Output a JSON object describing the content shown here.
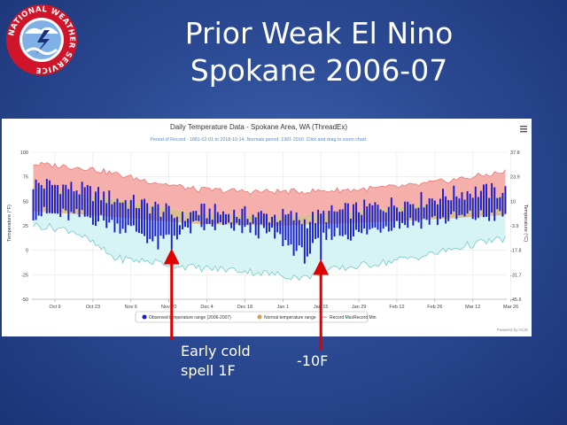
{
  "slide": {
    "title_line1": "Prior Weak El Nino",
    "title_line2": "Spokane 2006-07",
    "annotation_early_line1": "Early cold",
    "annotation_early_line2": "spell 1F",
    "annotation_cold": "-10F"
  },
  "logo": {
    "name": "NATIONAL WEATHER SERVICE",
    "brand_color": "#d0152a"
  },
  "chart_data": {
    "type": "area",
    "title": "Daily Temperature Data - Spokane Area, WA (ThreadEx)",
    "subtitle": "Period of Record - 1881-02-01 to 2018-10-14. Normals period: 1981-2010. Click and drag to zoom chart.",
    "ylabel_left": "Temperature (°F)",
    "ylabel_right": "Temperature (°C)",
    "ylim": [
      -50,
      100
    ],
    "yticks": [
      "100",
      "75",
      "50",
      "25",
      "0",
      "-25",
      "-50"
    ],
    "yticks_right": [
      "37.8",
      "23.9",
      "10",
      "-3.9",
      "-17.8",
      "-31.7",
      "-45.6"
    ],
    "x_labels": [
      "Oct 9",
      "Oct 23",
      "Nov 6",
      "Nov 20",
      "Dec 4",
      "Dec 18",
      "Jan 1",
      "Jan 15",
      "Jan 29",
      "Feb 12",
      "Feb 26",
      "Mar 12",
      "Mar 26"
    ],
    "days": 175,
    "start": "Oct 1",
    "series": [
      {
        "name": "Observed temperature range (2006-2007)",
        "color": "#1a1ad0",
        "keyframes_max": [
          [
            0,
            68
          ],
          [
            10,
            66
          ],
          [
            20,
            60
          ],
          [
            30,
            52
          ],
          [
            45,
            44
          ],
          [
            55,
            32
          ],
          [
            60,
            40
          ],
          [
            70,
            38
          ],
          [
            80,
            36
          ],
          [
            95,
            34
          ],
          [
            100,
            30
          ],
          [
            110,
            38
          ],
          [
            120,
            42
          ],
          [
            130,
            46
          ],
          [
            145,
            52
          ],
          [
            160,
            60
          ],
          [
            174,
            60
          ]
        ],
        "keyframes_min": [
          [
            0,
            38
          ],
          [
            10,
            36
          ],
          [
            20,
            34
          ],
          [
            30,
            26
          ],
          [
            40,
            18
          ],
          [
            46,
            5
          ],
          [
            50,
            14
          ],
          [
            60,
            24
          ],
          [
            70,
            24
          ],
          [
            80,
            22
          ],
          [
            90,
            14
          ],
          [
            100,
            -6
          ],
          [
            105,
            6
          ],
          [
            110,
            18
          ],
          [
            120,
            16
          ],
          [
            130,
            26
          ],
          [
            145,
            30
          ],
          [
            160,
            34
          ],
          [
            174,
            36
          ]
        ],
        "record_low_days": [
          {
            "day": 51,
            "value": 1
          },
          {
            "day": 106,
            "value": -10
          }
        ]
      },
      {
        "name": "Normal temperature range",
        "color": "#c8a060",
        "keyframes_max": [
          [
            0,
            65
          ],
          [
            30,
            52
          ],
          [
            60,
            38
          ],
          [
            90,
            34
          ],
          [
            120,
            40
          ],
          [
            150,
            48
          ],
          [
            174,
            56
          ]
        ],
        "keyframes_min": [
          [
            0,
            40
          ],
          [
            30,
            34
          ],
          [
            60,
            27
          ],
          [
            90,
            25
          ],
          [
            120,
            28
          ],
          [
            150,
            32
          ],
          [
            174,
            36
          ]
        ]
      },
      {
        "name": "Record Max",
        "color": "#e87878",
        "keyframes": [
          [
            0,
            88
          ],
          [
            20,
            84
          ],
          [
            40,
            72
          ],
          [
            60,
            62
          ],
          [
            80,
            60
          ],
          [
            100,
            60
          ],
          [
            120,
            62
          ],
          [
            140,
            66
          ],
          [
            160,
            74
          ],
          [
            174,
            80
          ]
        ]
      },
      {
        "name": "Record Min",
        "color": "#78c8c8",
        "keyframes": [
          [
            0,
            26
          ],
          [
            15,
            20
          ],
          [
            30,
            -8
          ],
          [
            45,
            -12
          ],
          [
            60,
            -18
          ],
          [
            75,
            -20
          ],
          [
            90,
            -25
          ],
          [
            100,
            -28
          ],
          [
            110,
            -20
          ],
          [
            130,
            -12
          ],
          [
            145,
            -5
          ],
          [
            160,
            5
          ],
          [
            174,
            12
          ]
        ]
      }
    ],
    "legend_position": "bottom",
    "credit": "Powered by ACIS"
  }
}
